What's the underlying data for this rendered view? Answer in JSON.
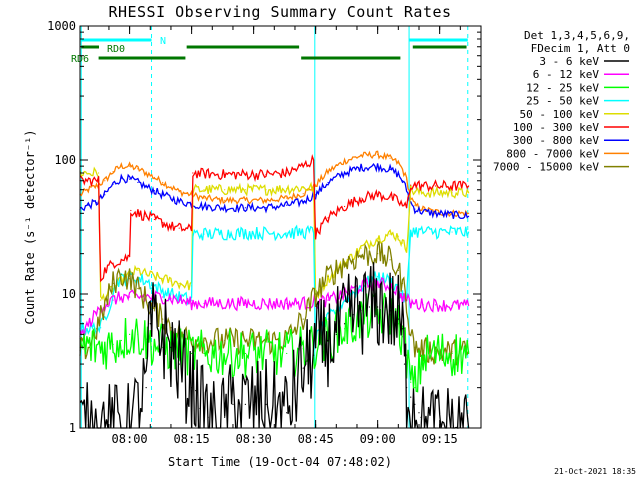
{
  "chart_data": {
    "type": "line",
    "title": "RHESSI Observing Summary Count Rates",
    "xlabel": "Start Time (19-Oct-04 07:48:02)",
    "ylabel": "Count Rate (s⁻¹ detector⁻¹)",
    "x_unit": "minutes after 07:48:02",
    "xlim": [
      0,
      97
    ],
    "ylim": [
      1,
      1000
    ],
    "yscale": "log",
    "x_ticks": [
      {
        "x": 12,
        "label": "08:00"
      },
      {
        "x": 27,
        "label": "08:15"
      },
      {
        "x": 42,
        "label": "08:30"
      },
      {
        "x": 57,
        "label": "08:45"
      },
      {
        "x": 72,
        "label": "09:00"
      },
      {
        "x": 87,
        "label": "09:15"
      }
    ],
    "y_ticks": [
      {
        "y": 1,
        "label": "1"
      },
      {
        "y": 10,
        "label": "10"
      },
      {
        "y": 100,
        "label": "100"
      },
      {
        "y": 1000,
        "label": "1000"
      }
    ],
    "legend_header": [
      "Det 1,3,4,5,6,9,",
      "FDecim 1, Att 0"
    ],
    "legend_position": "right, outside plot",
    "series": [
      {
        "name": "3 - 6 keV",
        "color": "#000000",
        "x": [
          0,
          4.5,
          5,
          12,
          16,
          17,
          20,
          22,
          24,
          27,
          28,
          29,
          31,
          33,
          35,
          37,
          40,
          45,
          50,
          54,
          56.5,
          57,
          60,
          62,
          64,
          66,
          68,
          70,
          72,
          74,
          75,
          77,
          78,
          78.5,
          79,
          80,
          81,
          82,
          82.5,
          83,
          84,
          86,
          90,
          94
        ],
        "y": [
          1.0,
          1.0,
          1.0,
          1.0,
          2.0,
          6.0,
          5.0,
          4.0,
          3.0,
          2.0,
          1.9,
          1.4,
          1.2,
          1.0,
          1.2,
          1.5,
          1.5,
          1.5,
          1.3,
          2.8,
          3.5,
          4.0,
          4.5,
          5.0,
          6.0,
          7.0,
          7.5,
          8.0,
          8.0,
          8.0,
          7.5,
          6.5,
          5.5,
          3.0,
          2.0,
          1.7,
          1.5,
          1.3,
          1.2,
          1.0,
          1.0,
          1.0,
          1.0,
          1.0
        ]
      },
      {
        "name": "6 - 12 keV",
        "color": "#ff00ff",
        "x": [
          0,
          5,
          8,
          10,
          12,
          14,
          16,
          18,
          20,
          22,
          24,
          27,
          30,
          40,
          50,
          57,
          60,
          64,
          68,
          72,
          75,
          77,
          78,
          79,
          80,
          81,
          83,
          86,
          90,
          94
        ],
        "y": [
          4.8,
          8.0,
          9.0,
          9.5,
          9.5,
          9.5,
          9.5,
          9.5,
          9.5,
          9.3,
          9.0,
          8.5,
          8.5,
          8.5,
          8.5,
          8.6,
          9.0,
          10.0,
          11.5,
          12.0,
          11.5,
          10.5,
          9.5,
          9.0,
          8.5,
          8.5,
          8.3,
          8.3,
          8.2,
          8.2
        ]
      },
      {
        "name": "12 - 25 keV",
        "color": "#00ff00",
        "x": [
          0,
          5,
          8,
          10,
          12,
          14,
          16,
          18,
          20,
          22,
          24,
          27,
          30,
          40,
          50,
          54,
          57,
          60,
          64,
          68,
          72,
          75,
          77,
          78,
          79,
          80,
          81,
          83,
          86,
          90,
          94
        ],
        "y": [
          4.0,
          4.0,
          4.2,
          4.5,
          5.0,
          5.0,
          4.6,
          4.2,
          4.0,
          3.9,
          3.8,
          3.6,
          3.6,
          3.6,
          3.6,
          3.9,
          4.2,
          4.7,
          5.5,
          6.5,
          7.0,
          7.0,
          6.0,
          4.8,
          3.5,
          2.2,
          2.0,
          3.4,
          3.6,
          3.6,
          3.6
        ]
      },
      {
        "name": "25 - 50 keV",
        "color": "#00ffff",
        "x": [
          0,
          5,
          7,
          9,
          12,
          14,
          16,
          18,
          20,
          22,
          24,
          27,
          27.3,
          30,
          40,
          50,
          56.5,
          57,
          60,
          64,
          68,
          72,
          75,
          77,
          78,
          79,
          80,
          81,
          83,
          86,
          90,
          94
        ],
        "y": [
          5.5,
          5.6,
          8.0,
          12.5,
          13.5,
          13.0,
          12.5,
          11.5,
          10.5,
          10.0,
          9.5,
          9.0,
          28.0,
          28.0,
          28.5,
          28.5,
          29.0,
          4.6,
          6.5,
          9.0,
          11.5,
          13.5,
          12.5,
          11.0,
          9.5,
          9.0,
          30.0,
          29.5,
          29.0,
          29.0,
          29.0,
          29.0
        ]
      },
      {
        "name": "50 - 100 keV",
        "color": "#dddd00",
        "x": [
          0,
          4.5,
          5,
          8,
          10,
          12,
          14,
          16,
          18,
          20,
          22,
          24,
          27,
          27.3,
          30,
          35,
          40,
          45,
          50,
          54,
          56.5,
          57,
          60,
          64,
          68,
          72,
          75,
          77,
          78,
          79,
          80,
          81,
          83,
          86,
          90,
          94
        ],
        "y": [
          80.0,
          80.0,
          9.0,
          11.0,
          12.5,
          14.0,
          15.0,
          14.0,
          13.5,
          13.0,
          12.5,
          12.0,
          11.5,
          60.0,
          60.0,
          60.0,
          60.0,
          60.0,
          61.0,
          62.0,
          62.0,
          9.5,
          13.0,
          17.0,
          22.0,
          26.0,
          28.0,
          27.0,
          24.0,
          22.0,
          60.0,
          58.0,
          57.0,
          57.0,
          57.0,
          57.0
        ]
      },
      {
        "name": "100 - 300 keV",
        "color": "#ff0000",
        "x": [
          0,
          4.5,
          5,
          6,
          8,
          10,
          12,
          12.3,
          14,
          16,
          18,
          20,
          22,
          24,
          27,
          27.3,
          30,
          35,
          40,
          45,
          50,
          54,
          56.5,
          57,
          60,
          64,
          68,
          72,
          75,
          77,
          78,
          79,
          80,
          81,
          83,
          86,
          90,
          94
        ],
        "y": [
          70.0,
          70.0,
          13.0,
          15.0,
          17.0,
          18.0,
          19.0,
          42.0,
          40.0,
          38.0,
          36.0,
          34.0,
          32.0,
          31.0,
          30.0,
          80.0,
          79.0,
          78.0,
          78.0,
          78.0,
          80.0,
          90.0,
          100.0,
          28.0,
          37.0,
          45.0,
          52.0,
          55.0,
          53.0,
          49.0,
          46.0,
          44.0,
          65.0,
          65.0,
          64.0,
          64.0,
          64.0,
          64.0
        ]
      },
      {
        "name": "300 - 800 keV",
        "color": "#0000ff",
        "x": [
          0,
          2,
          4,
          6,
          8,
          10,
          12,
          14,
          16,
          18,
          20,
          22,
          24,
          27,
          30,
          35,
          40,
          45,
          50,
          54,
          57,
          60,
          64,
          68,
          72,
          75,
          77,
          78,
          79,
          80,
          81,
          83,
          86,
          90,
          94
        ],
        "y": [
          43.0,
          46.0,
          48.0,
          55.0,
          66.0,
          73.0,
          72.0,
          68.0,
          63.0,
          59.0,
          55.0,
          52.0,
          49.0,
          47.0,
          45.0,
          44.0,
          44.0,
          44.0,
          46.0,
          49.0,
          55.0,
          68.0,
          80.0,
          88.0,
          90.0,
          85.0,
          78.0,
          70.0,
          60.0,
          48.0,
          43.0,
          41.0,
          40.0,
          39.0,
          38.0
        ]
      },
      {
        "name": "800 - 7000 keV",
        "color": "#ff8000",
        "x": [
          0,
          2,
          4,
          6,
          8,
          10,
          12,
          14,
          16,
          18,
          20,
          22,
          24,
          27,
          30,
          35,
          40,
          45,
          50,
          54,
          57,
          60,
          64,
          68,
          72,
          75,
          77,
          78,
          79,
          80,
          81,
          83,
          86,
          90,
          94
        ],
        "y": [
          55.0,
          60.0,
          64.0,
          70.0,
          82.0,
          90.0,
          90.0,
          86.0,
          80.0,
          74.0,
          68.0,
          63.0,
          58.0,
          55.0,
          52.0,
          50.0,
          50.0,
          50.0,
          52.0,
          56.0,
          65.0,
          82.0,
          98.0,
          108.0,
          110.0,
          103.0,
          95.0,
          85.0,
          72.0,
          52.0,
          46.0,
          43.0,
          41.0,
          40.0,
          40.0
        ]
      },
      {
        "name": "7000 - 15000 keV",
        "color": "#808000",
        "x": [
          0,
          2,
          4,
          6,
          8,
          10,
          12,
          14,
          16,
          18,
          20,
          22,
          24,
          27,
          30,
          35,
          40,
          45,
          50,
          54,
          57,
          60,
          64,
          68,
          72,
          75,
          77,
          78,
          79,
          80,
          81,
          83,
          86,
          90,
          94
        ],
        "y": [
          3.8,
          4.0,
          5.5,
          8.0,
          12.0,
          14.0,
          13.0,
          11.0,
          9.0,
          7.5,
          6.5,
          5.6,
          5.0,
          4.6,
          4.5,
          4.5,
          4.5,
          4.4,
          4.6,
          6.5,
          10.0,
          13.5,
          17.0,
          19.5,
          20.0,
          18.0,
          15.0,
          12.0,
          9.0,
          5.0,
          4.0,
          3.8,
          3.7,
          3.7,
          3.7
        ]
      }
    ],
    "annotations": [
      {
        "text": "N",
        "color": "#00ffff"
      },
      {
        "text": "RD0",
        "color": "#007700"
      },
      {
        "text": "RD6",
        "color": "#007700"
      }
    ],
    "timestamp": "21-Oct-2021 18:35"
  }
}
